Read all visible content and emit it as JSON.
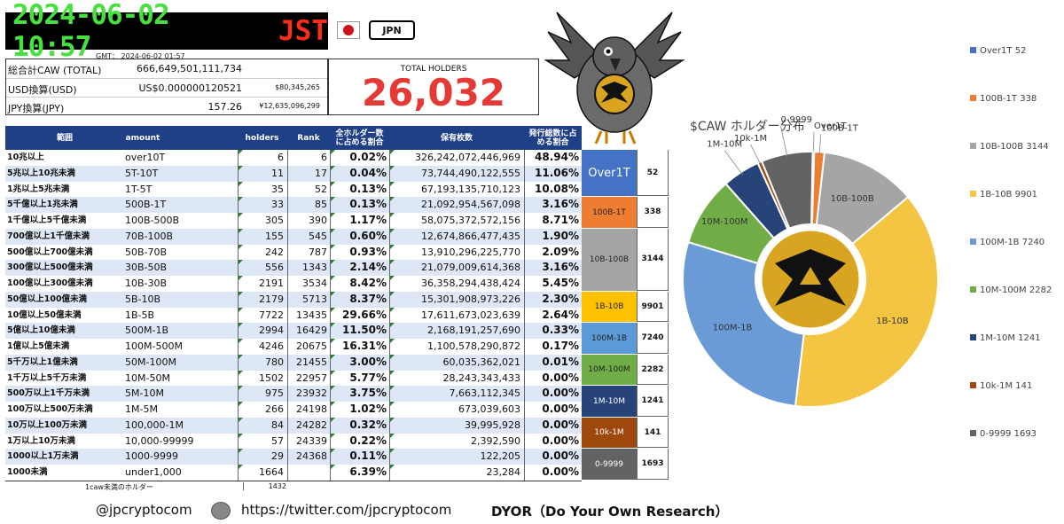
{
  "header": {
    "time": "2024-06-02 10:57",
    "tz": "JST",
    "country": "JPN",
    "gmt": "GMT： 2024-06-02 01:57"
  },
  "summary": {
    "rows": [
      {
        "label": "総合計CAW (TOTAL)",
        "value": "666,649,501,111,734",
        "extra": ""
      },
      {
        "label": "USD換算(USD)",
        "value": "US$0.000000120521",
        "extra": "$80,345,265"
      },
      {
        "label": "JPY換算(JPY)",
        "value": "157.26",
        "extra": "¥12,635,096,299"
      }
    ],
    "holders_label": "TOTAL HOLDERS",
    "holders_value": "26,032"
  },
  "table": {
    "headers": {
      "range": "範囲",
      "amount": "amount",
      "holders": "holders",
      "rank": "Rank",
      "pct": "全ホルダー数に占める割合",
      "balance": "保有枚数",
      "supply": "発行総数に占める割合"
    },
    "rows": [
      {
        "range": "10兆以上",
        "amount": "over10T",
        "holders": "6",
        "rank": "6",
        "pct": "0.02%",
        "balance": "326,242,072,446,969",
        "supply": "48.94%"
      },
      {
        "range": "5兆以上10兆未満",
        "amount": "5T-10T",
        "holders": "11",
        "rank": "17",
        "pct": "0.04%",
        "balance": "73,744,490,122,555",
        "supply": "11.06%"
      },
      {
        "range": "1兆以上5兆未満",
        "amount": "1T-5T",
        "holders": "35",
        "rank": "52",
        "pct": "0.13%",
        "balance": "67,193,135,710,123",
        "supply": "10.08%"
      },
      {
        "range": "5千億以上1兆未満",
        "amount": "500B-1T",
        "holders": "33",
        "rank": "85",
        "pct": "0.13%",
        "balance": "21,092,954,567,098",
        "supply": "3.16%"
      },
      {
        "range": "1千億以上5千億未満",
        "amount": "100B-500B",
        "holders": "305",
        "rank": "390",
        "pct": "1.17%",
        "balance": "58,075,372,572,156",
        "supply": "8.71%"
      },
      {
        "range": "700億以上1千億未満",
        "amount": "70B-100B",
        "holders": "155",
        "rank": "545",
        "pct": "0.60%",
        "balance": "12,674,866,477,435",
        "supply": "1.90%"
      },
      {
        "range": "500億以上700億未満",
        "amount": "50B-70B",
        "holders": "242",
        "rank": "787",
        "pct": "0.93%",
        "balance": "13,910,296,225,770",
        "supply": "2.09%"
      },
      {
        "range": "300億以上500億未満",
        "amount": "30B-50B",
        "holders": "556",
        "rank": "1343",
        "pct": "2.14%",
        "balance": "21,079,009,614,368",
        "supply": "3.16%"
      },
      {
        "range": "100億以上300億未満",
        "amount": "10B-30B",
        "holders": "2191",
        "rank": "3534",
        "pct": "8.42%",
        "balance": "36,358,294,438,424",
        "supply": "5.45%"
      },
      {
        "range": "50億以上100億未満",
        "amount": "5B-10B",
        "holders": "2179",
        "rank": "5713",
        "pct": "8.37%",
        "balance": "15,301,908,973,226",
        "supply": "2.30%"
      },
      {
        "range": "10億以上50億未満",
        "amount": "1B-5B",
        "holders": "7722",
        "rank": "13435",
        "pct": "29.66%",
        "balance": "17,611,673,023,639",
        "supply": "2.64%"
      },
      {
        "range": "5億以上10億未満",
        "amount": "500M-1B",
        "holders": "2994",
        "rank": "16429",
        "pct": "11.50%",
        "balance": "2,168,191,257,690",
        "supply": "0.33%"
      },
      {
        "range": "1億以上5億未満",
        "amount": "100M-500M",
        "holders": "4246",
        "rank": "20675",
        "pct": "16.31%",
        "balance": "1,100,578,290,872",
        "supply": "0.17%"
      },
      {
        "range": "5千万以上1億未満",
        "amount": "50M-100M",
        "holders": "780",
        "rank": "21455",
        "pct": "3.00%",
        "balance": "60,035,362,021",
        "supply": "0.01%"
      },
      {
        "range": "1千万以上5千万未満",
        "amount": "10M-50M",
        "holders": "1502",
        "rank": "22957",
        "pct": "5.77%",
        "balance": "28,243,343,433",
        "supply": "0.00%"
      },
      {
        "range": "500万以上1千万未満",
        "amount": "5M-10M",
        "holders": "975",
        "rank": "23932",
        "pct": "3.75%",
        "balance": "7,663,112,345",
        "supply": "0.00%"
      },
      {
        "range": "100万以上500万未満",
        "amount": "1M-5M",
        "holders": "266",
        "rank": "24198",
        "pct": "1.02%",
        "balance": "673,039,603",
        "supply": "0.00%"
      },
      {
        "range": "10万以上100万未満",
        "amount": "100,000-1M",
        "holders": "84",
        "rank": "24282",
        "pct": "0.32%",
        "balance": "39,995,928",
        "supply": "0.00%"
      },
      {
        "range": "1万以上10万未満",
        "amount": "10,000-99999",
        "holders": "57",
        "rank": "24339",
        "pct": "0.22%",
        "balance": "2,392,590",
        "supply": "0.00%"
      },
      {
        "range": "1000以上1万未満",
        "amount": "1000-9999",
        "holders": "29",
        "rank": "24368",
        "pct": "0.11%",
        "balance": "122,205",
        "supply": "0.00%"
      },
      {
        "range": "1000未満",
        "amount": "under1,000",
        "holders": "1664",
        "rank": "",
        "pct": "6.39%",
        "balance": "23,284",
        "supply": "0.00%"
      }
    ],
    "footnote_label": "1caw未満のホルダー",
    "footnote_value": "1432"
  },
  "categories": [
    {
      "label": "Over1T",
      "count": "52",
      "color": "#4472c4",
      "text_color": "#ffffff",
      "rows": 3
    },
    {
      "label": "100B-1T",
      "count": "338",
      "color": "#ed7d31",
      "text_color": "#222222",
      "rows": 2
    },
    {
      "label": "10B-100B",
      "count": "3144",
      "color": "#a5a5a5",
      "text_color": "#222222",
      "rows": 4
    },
    {
      "label": "1B-10B",
      "count": "9901",
      "color": "#ffc000",
      "text_color": "#222222",
      "rows": 2
    },
    {
      "label": "100M-1B",
      "count": "7240",
      "color": "#5b9bd5",
      "text_color": "#222222",
      "rows": 2
    },
    {
      "label": "10M-100M",
      "count": "2282",
      "color": "#70ad47",
      "text_color": "#222222",
      "rows": 2
    },
    {
      "label": "1M-10M",
      "count": "1241",
      "color": "#264478",
      "text_color": "#ffffff",
      "rows": 2
    },
    {
      "label": "10k-1M",
      "count": "141",
      "color": "#9e480e",
      "text_color": "#ffffff",
      "rows": 2
    },
    {
      "label": "0-9999",
      "count": "1693",
      "color": "#636363",
      "text_color": "#ffffff",
      "rows": 2
    }
  ],
  "footer": {
    "handle": "@jpcryptocom",
    "url": "https://twitter.com/jpcryptocom",
    "dyor": "DYOR（Do Your Own Research）"
  },
  "chart_data": {
    "type": "pie",
    "title": "$CAW ホルダー分布",
    "donut": true,
    "legend_position": "right",
    "slices": [
      {
        "label": "Over1T",
        "value": 52,
        "color": "#4472c4",
        "legend": "Over1T 52"
      },
      {
        "label": "100B-1T",
        "value": 338,
        "color": "#ed7d31",
        "legend": "100B-1T 338"
      },
      {
        "label": "10B-100B",
        "value": 3144,
        "color": "#a5a5a5",
        "legend": "10B-100B 3144"
      },
      {
        "label": "1B-10B",
        "value": 9901,
        "color": "#f4c542",
        "legend": "1B-10B 9901"
      },
      {
        "label": "100M-1B",
        "value": 7240,
        "color": "#6a9bd6",
        "legend": "100M-1B 7240"
      },
      {
        "label": "10M-100M",
        "value": 2282,
        "color": "#71ad47",
        "legend": "10M-100M 2282"
      },
      {
        "label": "1M-10M",
        "value": 1241,
        "color": "#264478",
        "legend": "1M-10M 1241"
      },
      {
        "label": "10k-1M",
        "value": 141,
        "color": "#9e480e",
        "legend": "10k-1M 141"
      },
      {
        "label": "0-9999",
        "value": 1693,
        "color": "#636363",
        "legend": "0-9999 1693"
      }
    ]
  }
}
